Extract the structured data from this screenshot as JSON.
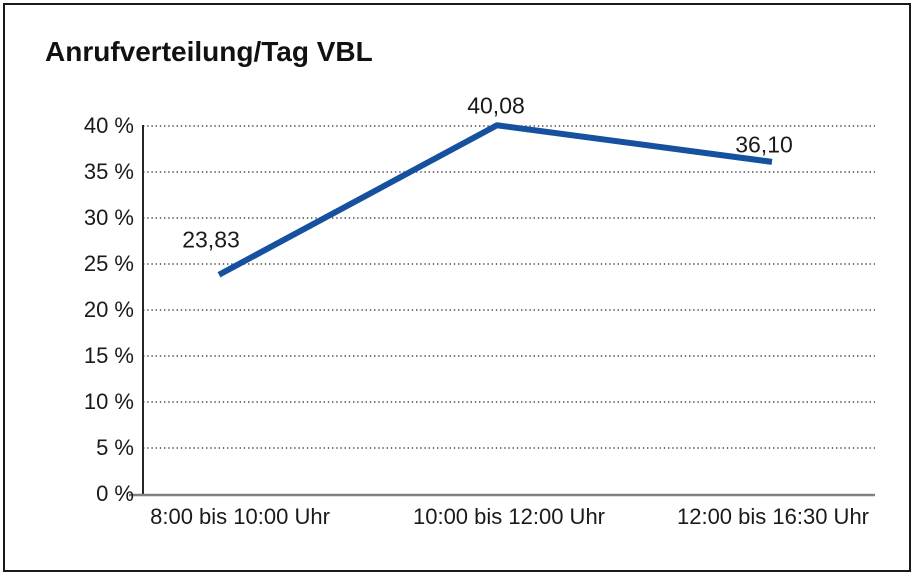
{
  "window": {
    "background_color": "#ffffff",
    "border_color": "#1a1a1a"
  },
  "chart_data": {
    "type": "line",
    "title": "Anrufverteilung/Tag VBL",
    "categories": [
      "8:00 bis 10:00 Uhr",
      "10:00 bis 12:00 Uhr",
      "12:00 bis 16:30 Uhr"
    ],
    "series": [
      {
        "name": "Anrufverteilung/Tag VBL",
        "values": [
          23.83,
          40.08,
          36.1
        ]
      }
    ],
    "point_labels": [
      "23,83",
      "40,08",
      "36,10"
    ],
    "xlabel": "",
    "ylabel": "",
    "ylim": [
      0,
      40
    ],
    "y_tick_step": 5,
    "y_tick_labels": [
      "0 %",
      "5 %",
      "10 %",
      "15 %",
      "20 %",
      "25 %",
      "30 %",
      "35 %",
      "40 %"
    ],
    "grid": "horizontal-dotted",
    "legend_position": "none",
    "line_color": "#15519e",
    "line_width": 6,
    "gridline_color": "#4d4d4d",
    "y_axis_color": "#262626",
    "x_axis_color": "#808080",
    "text_color": "#1a1a1a",
    "plot_background": "#ffffff"
  }
}
